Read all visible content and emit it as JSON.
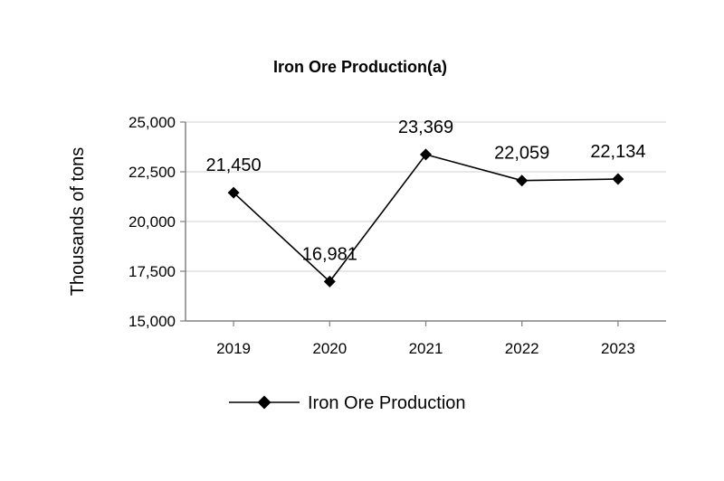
{
  "chart_data": {
    "type": "line",
    "title": "Iron Ore Production(a)",
    "xlabel": "",
    "ylabel": "Thousands of tons",
    "categories": [
      "2019",
      "2020",
      "2021",
      "2022",
      "2023"
    ],
    "series": [
      {
        "name": "Iron Ore Production",
        "values": [
          21450,
          16981,
          23369,
          22059,
          22134
        ],
        "labels": [
          "21,450",
          "16,981",
          "23,369",
          "22,059",
          "22,134"
        ],
        "color": "#000000",
        "marker": "diamond"
      }
    ],
    "ylim": [
      15000,
      25000
    ],
    "yticks": [
      15000,
      17500,
      20000,
      22500,
      25000
    ],
    "ytick_labels": [
      "15,000",
      "17,500",
      "20,000",
      "22,500",
      "25,000"
    ],
    "grid": true,
    "gridline_color": "#d9d9d9",
    "legend": "bottom"
  }
}
